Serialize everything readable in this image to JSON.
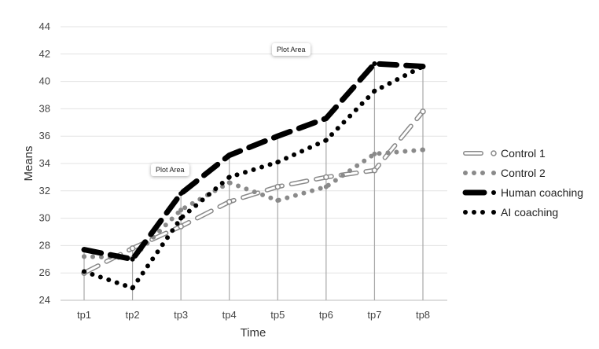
{
  "chart_data": {
    "type": "line",
    "title": "",
    "xlabel": "Time",
    "ylabel": "Means",
    "categories": [
      "tp1",
      "tp2",
      "tp3",
      "tp4",
      "tp5",
      "tp6",
      "tp7",
      "tp8"
    ],
    "ylim": [
      24,
      44
    ],
    "yticks": [
      24,
      26,
      28,
      30,
      32,
      34,
      36,
      38,
      40,
      42,
      44
    ],
    "grid": true,
    "legend_position": "right",
    "series": [
      {
        "name": "Control 1",
        "values": [
          26.0,
          27.8,
          29.4,
          31.2,
          32.3,
          33.0,
          33.5,
          37.8
        ],
        "color": "#8a8a8a",
        "style": "hollow-dash"
      },
      {
        "name": "Control 2",
        "values": [
          27.2,
          27.1,
          30.6,
          32.6,
          31.3,
          32.3,
          34.7,
          35.0
        ],
        "color": "#8a8a8a",
        "style": "dot"
      },
      {
        "name": "Human coaching",
        "values": [
          27.7,
          27.0,
          31.8,
          34.6,
          36.0,
          37.3,
          41.3,
          41.1
        ],
        "color": "#000000",
        "style": "long-dash"
      },
      {
        "name": "AI coaching",
        "values": [
          26.1,
          24.9,
          30.0,
          33.0,
          34.1,
          35.7,
          39.3,
          41.1
        ],
        "color": "#000000",
        "style": "dot"
      }
    ],
    "annotations": [
      "Plot Area",
      "Plot Area"
    ]
  }
}
